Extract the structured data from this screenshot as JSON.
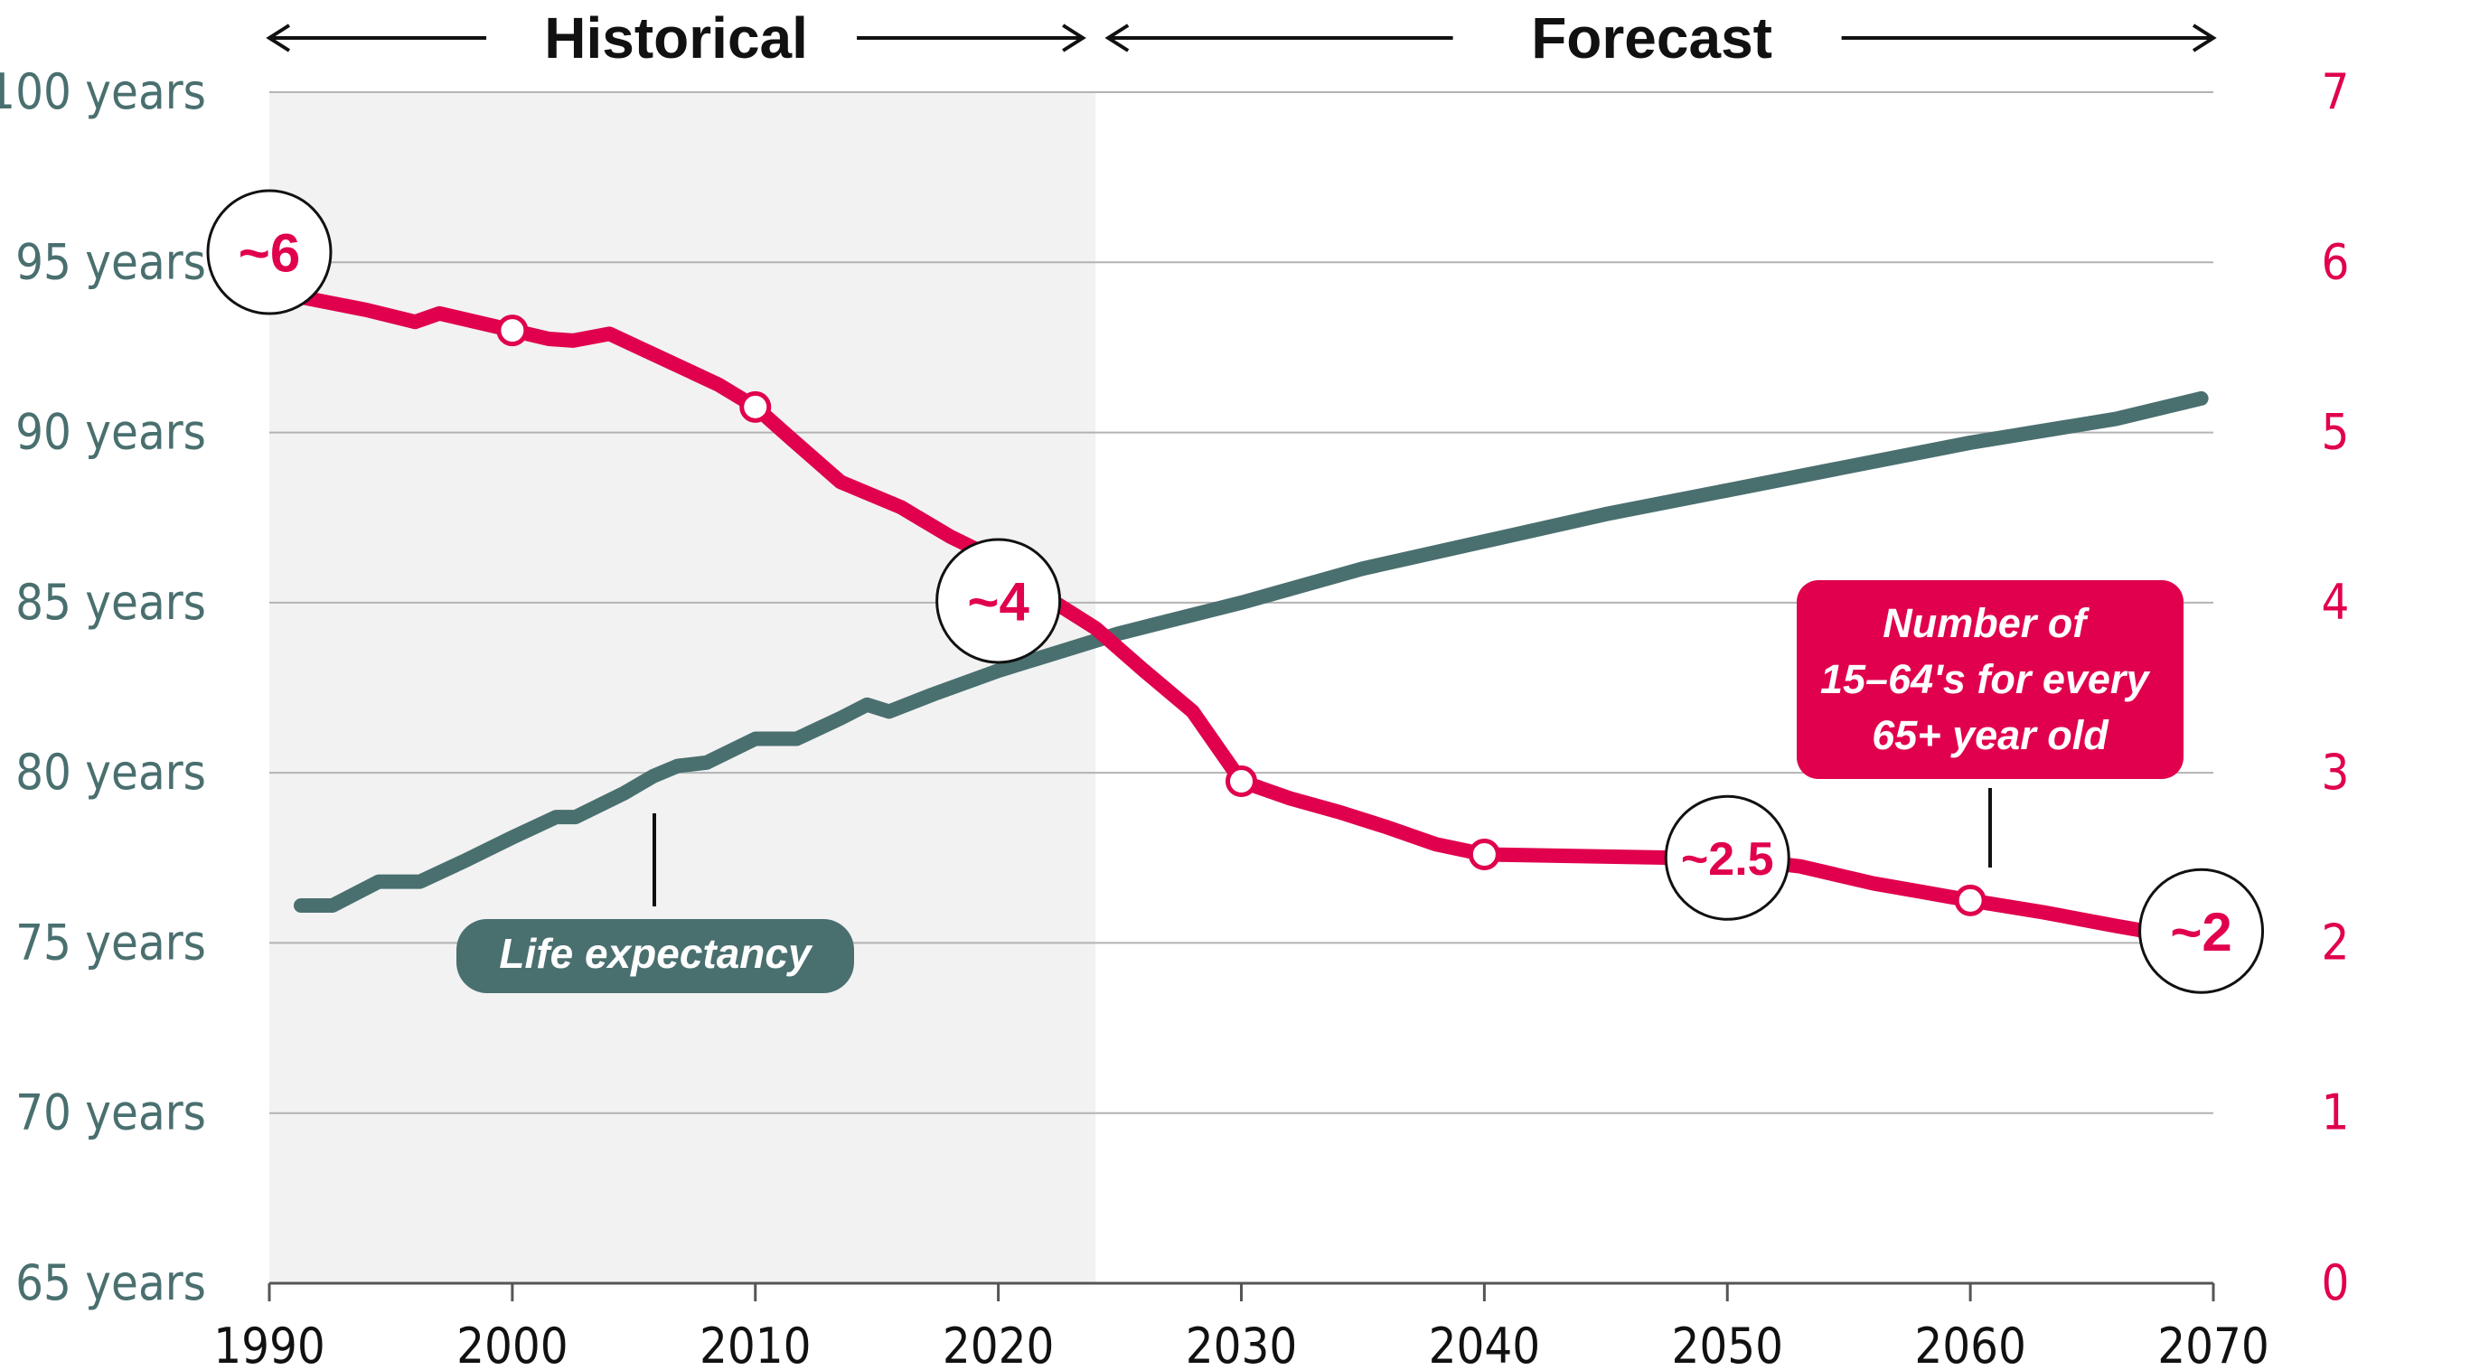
{
  "chart_data": {
    "type": "line",
    "period_labels": {
      "historical": "Historical",
      "forecast": "Forecast"
    },
    "x": {
      "min": 1990,
      "max": 2070,
      "ticks": [
        "1990",
        "2000",
        "2010",
        "2020",
        "2030",
        "2040",
        "2050",
        "2060",
        "2070"
      ],
      "split_year": 2024
    },
    "y_left": {
      "min": 65,
      "max": 100,
      "ticks": [
        "65 years",
        "70 years",
        "75 years",
        "80 years",
        "85 years",
        "90 years",
        "95 years",
        "100 years"
      ]
    },
    "y_right": {
      "min": 0,
      "max": 7,
      "ticks": [
        "0",
        "1",
        "2",
        "3",
        "4",
        "5",
        "6",
        "7"
      ]
    },
    "grid": true,
    "series": [
      {
        "name": "Life expectancy",
        "axis": "left",
        "color": "#4a6f6f",
        "points": [
          [
            1991.3,
            76.1
          ],
          [
            1992.6,
            76.1
          ],
          [
            1994.5,
            76.8
          ],
          [
            1996.2,
            76.8
          ],
          [
            1998,
            77.4
          ],
          [
            2000,
            78.1
          ],
          [
            2001.8,
            78.7
          ],
          [
            2002.6,
            78.7
          ],
          [
            2004.6,
            79.4
          ],
          [
            2005.8,
            79.9
          ],
          [
            2006.8,
            80.2
          ],
          [
            2008,
            80.3
          ],
          [
            2010,
            81.0
          ],
          [
            2011.7,
            81.0
          ],
          [
            2013.5,
            81.6
          ],
          [
            2014.6,
            82.0
          ],
          [
            2015.5,
            81.8
          ],
          [
            2017.3,
            82.3
          ],
          [
            2020,
            83.0
          ],
          [
            2025,
            84.1
          ],
          [
            2030,
            85.0
          ],
          [
            2035,
            86.0
          ],
          [
            2040,
            86.8
          ],
          [
            2045,
            87.6
          ],
          [
            2050,
            88.3
          ],
          [
            2055,
            89.0
          ],
          [
            2060,
            89.7
          ],
          [
            2066,
            90.4
          ],
          [
            2069.5,
            91.0
          ]
        ]
      },
      {
        "name": "Number of 15-64's for every 65+ year old",
        "axis": "right",
        "color": "#e0004d",
        "points": [
          [
            1990,
            6.06
          ],
          [
            1991.5,
            5.79
          ],
          [
            1994,
            5.72
          ],
          [
            1996,
            5.65
          ],
          [
            1997,
            5.7
          ],
          [
            1998.5,
            5.65
          ],
          [
            2000,
            5.6
          ],
          [
            2001.5,
            5.55
          ],
          [
            2002.5,
            5.54
          ],
          [
            2004,
            5.58
          ],
          [
            2005.5,
            5.48
          ],
          [
            2007,
            5.38
          ],
          [
            2008.5,
            5.28
          ],
          [
            2010,
            5.15
          ],
          [
            2011.5,
            4.96
          ],
          [
            2013.5,
            4.71
          ],
          [
            2016,
            4.56
          ],
          [
            2018,
            4.39
          ],
          [
            2020,
            4.25
          ],
          [
            2022,
            4.03
          ],
          [
            2024,
            3.85
          ],
          [
            2026,
            3.6
          ],
          [
            2028,
            3.36
          ],
          [
            2030,
            2.95
          ],
          [
            2032,
            2.85
          ],
          [
            2034,
            2.77
          ],
          [
            2036,
            2.68
          ],
          [
            2038,
            2.58
          ],
          [
            2040,
            2.52
          ],
          [
            2044,
            2.51
          ],
          [
            2048,
            2.5
          ],
          [
            2050,
            2.5
          ],
          [
            2053,
            2.45
          ],
          [
            2056,
            2.35
          ],
          [
            2058,
            2.3
          ],
          [
            2060,
            2.25
          ],
          [
            2063,
            2.18
          ],
          [
            2066,
            2.1
          ],
          [
            2068,
            2.05
          ]
        ]
      }
    ],
    "markers": [
      {
        "series": 1,
        "x": 2000,
        "y": 5.6
      },
      {
        "series": 1,
        "x": 2010,
        "y": 5.15
      },
      {
        "series": 1,
        "x": 2030,
        "y": 2.95
      },
      {
        "series": 1,
        "x": 2040,
        "y": 2.52
      },
      {
        "series": 1,
        "x": 2060,
        "y": 2.25
      }
    ],
    "callouts": [
      {
        "text": "~6",
        "x": 1990,
        "y": 6.06
      },
      {
        "text": "~4",
        "x": 2020,
        "y": 4.01
      },
      {
        "text": "~2.5",
        "x": 2050,
        "y": 2.5
      },
      {
        "text": "~2",
        "x": 2069.5,
        "y": 2.07
      }
    ],
    "annotations": {
      "life_expectancy_label": "Life expectancy",
      "ratio_label_lines": [
        "Number of",
        "15–64's for every",
        "65+ year old"
      ]
    }
  }
}
